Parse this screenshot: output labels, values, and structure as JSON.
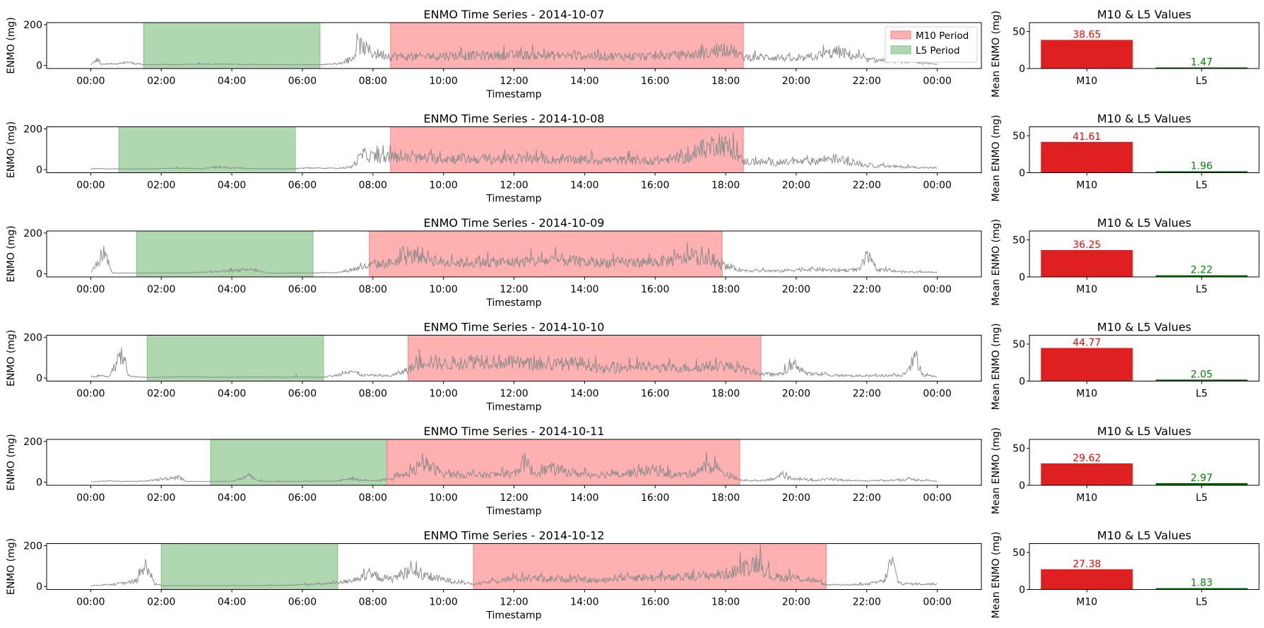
{
  "chart_data": {
    "type": "line",
    "legend": {
      "placement": "top-right",
      "entries": [
        {
          "label": "M10 Period",
          "color": "#ffb0b0",
          "edge": "#f08080"
        },
        {
          "label": "L5 Period",
          "color": "#b0d8b0",
          "edge": "#80c080"
        }
      ]
    },
    "line_color": "#8c8c8c",
    "ts_axes": {
      "xlabel": "Timestamp",
      "ylabel": "ENMO (mg)",
      "xlim": [
        -1.25,
        25.25
      ],
      "ylim": [
        -15,
        210
      ],
      "yticks": [
        0,
        200
      ],
      "xticks": [
        {
          "v": 0,
          "label": "00:00"
        },
        {
          "v": 2,
          "label": "02:00"
        },
        {
          "v": 4,
          "label": "04:00"
        },
        {
          "v": 6,
          "label": "06:00"
        },
        {
          "v": 8,
          "label": "08:00"
        },
        {
          "v": 10,
          "label": "10:00"
        },
        {
          "v": 12,
          "label": "12:00"
        },
        {
          "v": 14,
          "label": "14:00"
        },
        {
          "v": 16,
          "label": "16:00"
        },
        {
          "v": 18,
          "label": "18:00"
        },
        {
          "v": 20,
          "label": "20:00"
        },
        {
          "v": 22,
          "label": "22:00"
        },
        {
          "v": 24,
          "label": "00:00"
        }
      ]
    },
    "bar_axes": {
      "ylabel": "Mean ENMO (mg)",
      "ylim": [
        0,
        62
      ],
      "yticks": [
        0,
        50
      ],
      "categories": [
        "M10",
        "L5"
      ],
      "colors": [
        "#de2020",
        "#006400"
      ],
      "label_colors": [
        "#ff0000",
        "#008000"
      ]
    },
    "days": [
      {
        "title": "ENMO Time Series - 2014-10-07",
        "bar_title": "M10 & L5 Values",
        "m10_window": [
          8.5,
          18.5
        ],
        "l5_window": [
          1.5,
          6.5
        ],
        "m10": 38.65,
        "m10_label": "38.65",
        "l5": 1.47,
        "l5_label": "1.47",
        "profile": [
          [
            0,
            4
          ],
          [
            0.2,
            45
          ],
          [
            0.3,
            6
          ],
          [
            0.9,
            15
          ],
          [
            1.0,
            25
          ],
          [
            1.5,
            5
          ],
          [
            2.5,
            6
          ],
          [
            3.3,
            8
          ],
          [
            4.5,
            6
          ],
          [
            5.7,
            4
          ],
          [
            6.5,
            4
          ],
          [
            7.0,
            12
          ],
          [
            7.4,
            35
          ],
          [
            7.6,
            150
          ],
          [
            8.0,
            90
          ],
          [
            8.5,
            70
          ],
          [
            9.0,
            60
          ],
          [
            10,
            70
          ],
          [
            12,
            75
          ],
          [
            14,
            70
          ],
          [
            16,
            65
          ],
          [
            17.5,
            85
          ],
          [
            18.0,
            130
          ],
          [
            18.5,
            60
          ],
          [
            19.5,
            60
          ],
          [
            20.0,
            40
          ],
          [
            20.8,
            80
          ],
          [
            21.2,
            100
          ],
          [
            22.0,
            40
          ],
          [
            23.0,
            30
          ],
          [
            24,
            8
          ]
        ]
      },
      {
        "title": "ENMO Time Series - 2014-10-08",
        "bar_title": "M10 & L5 Values",
        "m10_window": [
          8.5,
          18.5
        ],
        "l5_window": [
          0.8,
          5.8
        ],
        "m10": 41.61,
        "m10_label": "41.61",
        "l5": 1.96,
        "l5_label": "1.96",
        "profile": [
          [
            0,
            6
          ],
          [
            0.8,
            5
          ],
          [
            1.5,
            5
          ],
          [
            2.5,
            8
          ],
          [
            3.2,
            6
          ],
          [
            3.6,
            18
          ],
          [
            4.5,
            6
          ],
          [
            5.8,
            6
          ],
          [
            6.2,
            10
          ],
          [
            7.0,
            8
          ],
          [
            7.4,
            20
          ],
          [
            7.7,
            110
          ],
          [
            8.2,
            85
          ],
          [
            8.5,
            90
          ],
          [
            9,
            85
          ],
          [
            10,
            80
          ],
          [
            12,
            75
          ],
          [
            14,
            70
          ],
          [
            16,
            65
          ],
          [
            17.0,
            90
          ],
          [
            17.8,
            200
          ],
          [
            18.2,
            140
          ],
          [
            18.5,
            60
          ],
          [
            19.5,
            50
          ],
          [
            20.5,
            60
          ],
          [
            21.0,
            85
          ],
          [
            22.0,
            30
          ],
          [
            23.0,
            20
          ],
          [
            24,
            12
          ]
        ]
      },
      {
        "title": "ENMO Time Series - 2014-10-09",
        "bar_title": "M10 & L5 Values",
        "m10_window": [
          7.9,
          17.9
        ],
        "l5_window": [
          1.3,
          6.3
        ],
        "m10": 36.25,
        "m10_label": "36.25",
        "l5": 2.22,
        "l5_label": "2.22",
        "profile": [
          [
            0,
            15
          ],
          [
            0.2,
            70
          ],
          [
            0.35,
            170
          ],
          [
            0.6,
            10
          ],
          [
            0.7,
            5
          ],
          [
            1.3,
            5
          ],
          [
            2.5,
            6
          ],
          [
            3.0,
            8
          ],
          [
            4.6,
            30
          ],
          [
            5.0,
            5
          ],
          [
            6.3,
            6
          ],
          [
            7.0,
            8
          ],
          [
            7.9,
            60
          ],
          [
            8.5,
            80
          ],
          [
            9.3,
            140
          ],
          [
            10,
            80
          ],
          [
            12,
            85
          ],
          [
            13.5,
            100
          ],
          [
            14,
            80
          ],
          [
            16,
            85
          ],
          [
            17.2,
            120
          ],
          [
            17.9,
            60
          ],
          [
            18.5,
            25
          ],
          [
            19.5,
            20
          ],
          [
            20.0,
            30
          ],
          [
            20.5,
            35
          ],
          [
            21.0,
            25
          ],
          [
            21.8,
            30
          ],
          [
            22.0,
            130
          ],
          [
            22.3,
            30
          ],
          [
            23,
            15
          ],
          [
            24,
            10
          ]
        ]
      },
      {
        "title": "ENMO Time Series - 2014-10-10",
        "bar_title": "M10 & L5 Values",
        "m10_window": [
          9.0,
          19.0
        ],
        "l5_window": [
          1.6,
          6.6
        ],
        "m10": 44.77,
        "m10_label": "44.77",
        "l5": 2.05,
        "l5_label": "2.05",
        "profile": [
          [
            0,
            12
          ],
          [
            0.5,
            12
          ],
          [
            0.9,
            170
          ],
          [
            1.1,
            10
          ],
          [
            1.6,
            4
          ],
          [
            2.6,
            8
          ],
          [
            3.5,
            5
          ],
          [
            5.0,
            6
          ],
          [
            6.6,
            5
          ],
          [
            7.0,
            20
          ],
          [
            7.3,
            60
          ],
          [
            7.7,
            20
          ],
          [
            8.5,
            15
          ],
          [
            9.0,
            60
          ],
          [
            9.5,
            130
          ],
          [
            10,
            100
          ],
          [
            11,
            130
          ],
          [
            12,
            110
          ],
          [
            13,
            95
          ],
          [
            14,
            110
          ],
          [
            14.5,
            60
          ],
          [
            15.5,
            85
          ],
          [
            16,
            70
          ],
          [
            17,
            75
          ],
          [
            18,
            90
          ],
          [
            19,
            30
          ],
          [
            19.5,
            25
          ],
          [
            20.0,
            100
          ],
          [
            20.3,
            30
          ],
          [
            21,
            20
          ],
          [
            22,
            15
          ],
          [
            23.0,
            20
          ],
          [
            23.4,
            150
          ],
          [
            23.6,
            20
          ],
          [
            24,
            8
          ]
        ]
      },
      {
        "title": "ENMO Time Series - 2014-10-11",
        "bar_title": "M10 & L5 Values",
        "m10_window": [
          8.4,
          18.4
        ],
        "l5_window": [
          3.4,
          8.4
        ],
        "m10": 29.62,
        "m10_label": "29.62",
        "l5": 2.97,
        "l5_label": "2.97",
        "profile": [
          [
            0,
            4
          ],
          [
            0.5,
            8
          ],
          [
            1.0,
            5
          ],
          [
            1.6,
            8
          ],
          [
            2.5,
            40
          ],
          [
            2.7,
            5
          ],
          [
            3.4,
            5
          ],
          [
            4.0,
            6
          ],
          [
            4.5,
            45
          ],
          [
            4.8,
            5
          ],
          [
            6.0,
            6
          ],
          [
            7.0,
            8
          ],
          [
            7.3,
            25
          ],
          [
            8.0,
            8
          ],
          [
            8.4,
            15
          ],
          [
            9.0,
            60
          ],
          [
            9.5,
            130
          ],
          [
            10,
            60
          ],
          [
            11,
            50
          ],
          [
            12.0,
            60
          ],
          [
            12.3,
            150
          ],
          [
            12.6,
            60
          ],
          [
            13.0,
            100
          ],
          [
            14,
            55
          ],
          [
            15,
            60
          ],
          [
            16,
            90
          ],
          [
            16.5,
            50
          ],
          [
            17.0,
            60
          ],
          [
            17.5,
            120
          ],
          [
            18.0,
            60
          ],
          [
            18.4,
            15
          ],
          [
            19.0,
            10
          ],
          [
            19.6,
            40
          ],
          [
            20.5,
            12
          ],
          [
            21.0,
            25
          ],
          [
            21.4,
            12
          ],
          [
            22.0,
            8
          ],
          [
            23.3,
            20
          ],
          [
            24,
            6
          ]
        ]
      },
      {
        "title": "ENMO Time Series - 2014-10-12",
        "bar_title": "M10 & L5 Values",
        "m10_window": [
          10.85,
          20.85
        ],
        "l5_window": [
          2.0,
          7.0
        ],
        "m10": 27.38,
        "m10_label": "27.38",
        "l5": 1.83,
        "l5_label": "1.83",
        "profile": [
          [
            0,
            5
          ],
          [
            0.5,
            12
          ],
          [
            1.0,
            25
          ],
          [
            1.3,
            40
          ],
          [
            1.6,
            160
          ],
          [
            1.8,
            20
          ],
          [
            2.0,
            5
          ],
          [
            3.0,
            5
          ],
          [
            4.0,
            5
          ],
          [
            5.5,
            6
          ],
          [
            6.5,
            18
          ],
          [
            7.0,
            25
          ],
          [
            8.0,
            80
          ],
          [
            8.5,
            50
          ],
          [
            9.0,
            110
          ],
          [
            9.5,
            70
          ],
          [
            10.0,
            50
          ],
          [
            10.85,
            15
          ],
          [
            11.5,
            40
          ],
          [
            12,
            60
          ],
          [
            13.5,
            55
          ],
          [
            14.5,
            40
          ],
          [
            15.0,
            70
          ],
          [
            16.5,
            60
          ],
          [
            17.5,
            80
          ],
          [
            18.0,
            90
          ],
          [
            18.5,
            130
          ],
          [
            18.9,
            180
          ],
          [
            19.3,
            70
          ],
          [
            20.0,
            60
          ],
          [
            20.5,
            45
          ],
          [
            20.85,
            10
          ],
          [
            21.5,
            10
          ],
          [
            22.0,
            15
          ],
          [
            22.5,
            40
          ],
          [
            22.7,
            190
          ],
          [
            22.9,
            30
          ],
          [
            23.0,
            20
          ],
          [
            24,
            15
          ]
        ]
      }
    ]
  }
}
